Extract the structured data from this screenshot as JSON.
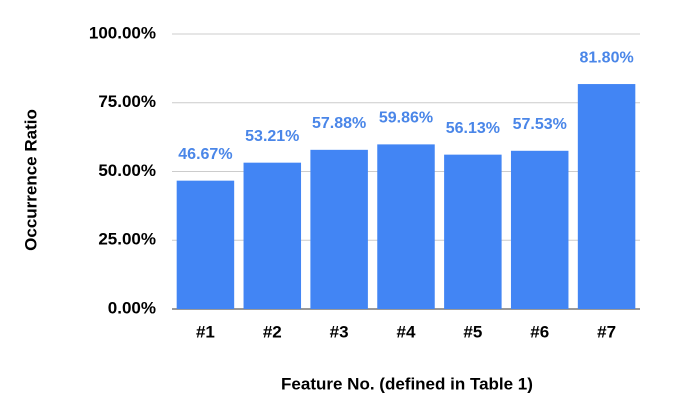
{
  "chart_data": {
    "type": "bar",
    "x_label": "Feature No. (defined in Table 1)",
    "y_label": "Occurrence Ratio",
    "categories": [
      "#1",
      "#2",
      "#3",
      "#4",
      "#5",
      "#6",
      "#7"
    ],
    "values": [
      46.67,
      53.21,
      57.88,
      59.86,
      56.13,
      57.53,
      81.8
    ],
    "value_labels": [
      "46.67%",
      "53.21%",
      "57.88%",
      "59.86%",
      "56.13%",
      "57.53%",
      "81.80%"
    ],
    "color": "#4285f4",
    "ylim": [
      0,
      100
    ],
    "yticks": [
      {
        "value": 0,
        "label": "0.00%"
      },
      {
        "value": 25,
        "label": "25.00%"
      },
      {
        "value": 50,
        "label": "50.00%"
      },
      {
        "value": 75,
        "label": "75.00%"
      },
      {
        "value": 100,
        "label": "100.00%"
      }
    ],
    "grid": true
  }
}
